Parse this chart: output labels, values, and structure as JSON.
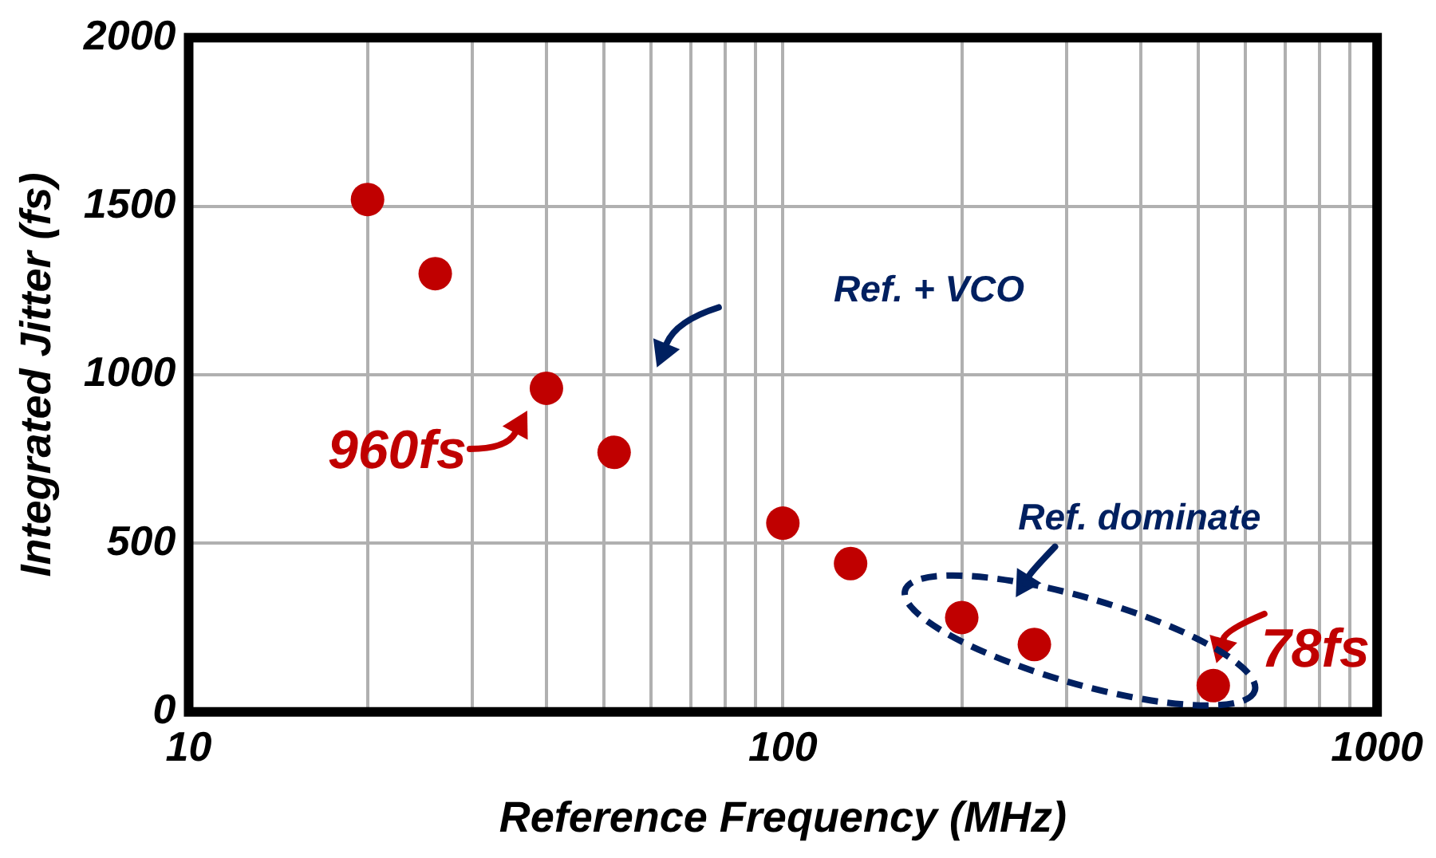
{
  "chart_data": {
    "type": "scatter",
    "xlabel": "Reference Frequency (MHz)",
    "ylabel": "Integrated Jitter (fs)",
    "x": [
      20,
      26,
      40,
      52,
      100,
      130,
      200,
      265,
      530
    ],
    "values": [
      1520,
      1300,
      960,
      770,
      560,
      440,
      280,
      200,
      78
    ],
    "color": "#c00000",
    "marker": "circle",
    "log": "x",
    "grid": true,
    "xlim": [
      10,
      1000
    ],
    "ylim": [
      0,
      2000
    ],
    "xticks": [
      10,
      {
        "value": 20,
        "label": null
      },
      {
        "value": 30,
        "label": null
      },
      {
        "value": 40,
        "label": null
      },
      {
        "value": 50,
        "label": null
      },
      {
        "value": 60,
        "label": null
      },
      {
        "value": 70,
        "label": null
      },
      {
        "value": 80,
        "label": null
      },
      {
        "value": 90,
        "label": null
      },
      100,
      {
        "value": 200,
        "label": null
      },
      {
        "value": 300,
        "label": null
      },
      {
        "value": 400,
        "label": null
      },
      {
        "value": 500,
        "label": null
      },
      {
        "value": 600,
        "label": null
      },
      {
        "value": 700,
        "label": null
      },
      {
        "value": 800,
        "label": null
      },
      {
        "value": 900,
        "label": null
      },
      1000
    ],
    "yticks": [
      0,
      500,
      1000,
      1500,
      2000
    ],
    "annotations": [
      {
        "text": "960fs",
        "x": 40,
        "y": 960
      },
      {
        "text": "78fs",
        "x": 530,
        "y": 78
      },
      "Ref. + VCO",
      "Ref. dominate"
    ]
  }
}
